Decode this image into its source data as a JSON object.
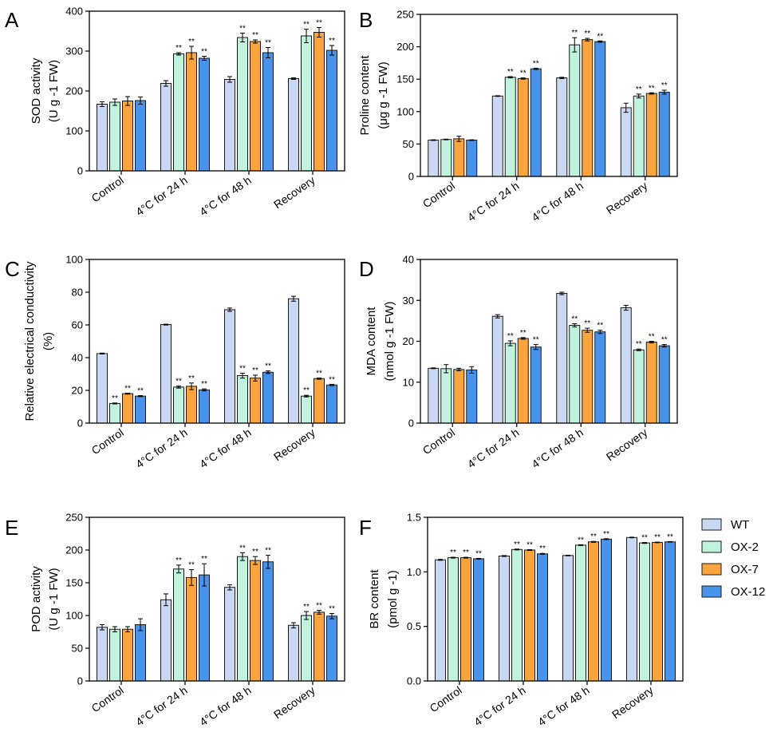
{
  "figure": {
    "colors": {
      "WT": "#c9d9f3",
      "OX-2": "#bff3dc",
      "OX-7": "#f9a43c",
      "OX-12": "#4892ea"
    },
    "legend": [
      "WT",
      "OX-2",
      "OX-7",
      "OX-12"
    ]
  },
  "chart_data": [
    {
      "type": "bar",
      "panel": "A",
      "title": "",
      "ylabel_lines": [
        "SOD activity",
        "(U g -1 FW)"
      ],
      "ylabel_sup": "-1",
      "ylim": [
        0,
        400
      ],
      "yticks": [
        0,
        100,
        200,
        300,
        400
      ],
      "categories": [
        "Control",
        "4°C for 24 h",
        "4°C for 48 h",
        "Recovery"
      ],
      "series": [
        {
          "name": "WT",
          "values": [
            167,
            219,
            229,
            231
          ],
          "errors": [
            6,
            7,
            7,
            2
          ]
        },
        {
          "name": "OX-2",
          "values": [
            172,
            293,
            334,
            338
          ],
          "errors": [
            8,
            3,
            11,
            17
          ]
        },
        {
          "name": "OX-7",
          "values": [
            175,
            296,
            324,
            347
          ],
          "errors": [
            11,
            16,
            4,
            12
          ]
        },
        {
          "name": "OX-12",
          "values": [
            176,
            282,
            296,
            302
          ],
          "errors": [
            9,
            5,
            13,
            12
          ]
        }
      ],
      "sig": [
        [
          "",
          "",
          "",
          ""
        ],
        [
          "",
          "**",
          "**",
          "**"
        ],
        [
          "",
          "**",
          "**",
          "**"
        ],
        [
          "",
          "**",
          "**",
          "**"
        ]
      ]
    },
    {
      "type": "bar",
      "panel": "B",
      "title": "",
      "ylabel_lines": [
        "Proline content",
        "(μg g -1 FW)"
      ],
      "ylim": [
        0,
        250
      ],
      "yticks": [
        0,
        50,
        100,
        150,
        200,
        250
      ],
      "categories": [
        "Control",
        "4°C for 24 h",
        "4°C for 48 h",
        "Recovery"
      ],
      "series": [
        {
          "name": "WT",
          "values": [
            56,
            124,
            152,
            106
          ],
          "errors": [
            0.5,
            0.5,
            1,
            7
          ]
        },
        {
          "name": "OX-2",
          "values": [
            57,
            153,
            203,
            124
          ],
          "errors": [
            0.5,
            1,
            11,
            3
          ]
        },
        {
          "name": "OX-7",
          "values": [
            58,
            151,
            211,
            128
          ],
          "errors": [
            4,
            1,
            2,
            1
          ]
        },
        {
          "name": "OX-12",
          "values": [
            56,
            166,
            208,
            130
          ],
          "errors": [
            0.5,
            1,
            1,
            3
          ]
        }
      ],
      "sig": [
        [
          "",
          "",
          "",
          ""
        ],
        [
          "",
          "**",
          "**",
          "**"
        ],
        [
          "",
          "**",
          "**",
          "**"
        ],
        [
          "",
          "**",
          "**",
          "**"
        ]
      ]
    },
    {
      "type": "bar",
      "panel": "C",
      "title": "",
      "ylabel_lines": [
        "Relative electrical conductivity",
        "(%)"
      ],
      "ylim": [
        0,
        100
      ],
      "yticks": [
        0,
        20,
        40,
        60,
        80,
        100
      ],
      "categories": [
        "Control",
        "4°C for 24 h",
        "4°C for 48 h",
        "Recovery"
      ],
      "series": [
        {
          "name": "WT",
          "values": [
            42.5,
            60.2,
            69.3,
            76
          ],
          "errors": [
            0.3,
            0.3,
            1,
            1.5
          ]
        },
        {
          "name": "OX-2",
          "values": [
            12,
            22,
            29,
            16.5
          ],
          "errors": [
            0.3,
            0.6,
            1.5,
            0.5
          ]
        },
        {
          "name": "OX-7",
          "values": [
            18,
            22.5,
            27.5,
            27.2
          ],
          "errors": [
            0.3,
            2,
            1.8,
            0.4
          ]
        },
        {
          "name": "OX-12",
          "values": [
            16.5,
            20.3,
            31.1,
            23.3
          ],
          "errors": [
            0.3,
            0.6,
            0.8,
            0.4
          ]
        }
      ],
      "sig": [
        [
          "",
          "**",
          "**",
          "**"
        ],
        [
          "",
          "**",
          "**",
          "**"
        ],
        [
          "",
          "**",
          "**",
          "**"
        ],
        [
          "",
          "**",
          "**",
          "**"
        ]
      ]
    },
    {
      "type": "bar",
      "panel": "D",
      "title": "",
      "ylabel_lines": [
        "MDA content",
        "(nmol g -1 FW)"
      ],
      "ylim": [
        0,
        40
      ],
      "yticks": [
        0,
        10,
        20,
        30,
        40
      ],
      "categories": [
        "Control",
        "4°C for 24 h",
        "4°C for 48 h",
        "Recovery"
      ],
      "series": [
        {
          "name": "WT",
          "values": [
            13.4,
            26.1,
            31.7,
            28.2
          ],
          "errors": [
            0.1,
            0.4,
            0.3,
            0.6
          ]
        },
        {
          "name": "OX-2",
          "values": [
            13.3,
            19.5,
            23.9,
            17.9
          ],
          "errors": [
            1,
            0.6,
            0.4,
            0.2
          ]
        },
        {
          "name": "OX-7",
          "values": [
            13.1,
            20.7,
            22.7,
            19.8
          ],
          "errors": [
            0.3,
            0.2,
            0.5,
            0.2
          ]
        },
        {
          "name": "OX-12",
          "values": [
            13,
            18.6,
            22.3,
            18.9
          ],
          "errors": [
            0.8,
            0.6,
            0.4,
            0.3
          ]
        }
      ],
      "sig": [
        [
          "",
          "",
          "",
          ""
        ],
        [
          "",
          "**",
          "**",
          "**"
        ],
        [
          "",
          "**",
          "**",
          "**"
        ],
        [
          "",
          "**",
          "**",
          "**"
        ]
      ]
    },
    {
      "type": "bar",
      "panel": "E",
      "title": "",
      "ylabel_lines": [
        "POD activity",
        "(U g -1 FW)"
      ],
      "ylim": [
        0,
        250
      ],
      "yticks": [
        0,
        50,
        100,
        150,
        200,
        250
      ],
      "categories": [
        "Control",
        "4°C for 24 h",
        "4°C for 48 h",
        "Recovery"
      ],
      "series": [
        {
          "name": "WT",
          "values": [
            82,
            124,
            143,
            85
          ],
          "errors": [
            4,
            9,
            4,
            4
          ]
        },
        {
          "name": "OX-2",
          "values": [
            79,
            171,
            190,
            100
          ],
          "errors": [
            4,
            6,
            6,
            6
          ]
        },
        {
          "name": "OX-7",
          "values": [
            79,
            158,
            184,
            105
          ],
          "errors": [
            4,
            12,
            6,
            3
          ]
        },
        {
          "name": "OX-12",
          "values": [
            86,
            162,
            182,
            99
          ],
          "errors": [
            9,
            17,
            10,
            4
          ]
        }
      ],
      "sig": [
        [
          "",
          "",
          "",
          ""
        ],
        [
          "",
          "**",
          "**",
          "**"
        ],
        [
          "",
          "**",
          "**",
          "**"
        ],
        [
          "",
          "**",
          "**",
          "**"
        ]
      ]
    },
    {
      "type": "bar",
      "panel": "F",
      "title": "",
      "ylabel_lines": [
        "BR content",
        "(pmol g -1)"
      ],
      "ylim": [
        0,
        1.5
      ],
      "yticks": [
        0.0,
        0.5,
        1.0,
        1.5
      ],
      "ytick_labels": [
        "0.0",
        "0.5",
        "1.0",
        "1.5"
      ],
      "categories": [
        "Control",
        "4°C for 24 h",
        "4°C for 48 h",
        "Recovery"
      ],
      "series": [
        {
          "name": "WT",
          "values": [
            1.11,
            1.145,
            1.15,
            1.315
          ],
          "errors": [
            0.004,
            0.004,
            0.003,
            0.003
          ]
        },
        {
          "name": "OX-2",
          "values": [
            1.13,
            1.205,
            1.245,
            1.265
          ],
          "errors": [
            0.004,
            0.004,
            0.004,
            0.004
          ]
        },
        {
          "name": "OX-7",
          "values": [
            1.13,
            1.2,
            1.275,
            1.27
          ],
          "errors": [
            0.004,
            0.004,
            0.004,
            0.003
          ]
        },
        {
          "name": "OX-12",
          "values": [
            1.12,
            1.165,
            1.3,
            1.275
          ],
          "errors": [
            0.003,
            0.004,
            0.004,
            0.003
          ]
        }
      ],
      "sig": [
        [
          "",
          "**",
          "**",
          "**"
        ],
        [
          "",
          "**",
          "**",
          "**"
        ],
        [
          "",
          "**",
          "**",
          "**"
        ],
        [
          "",
          "**",
          "**",
          "**"
        ]
      ]
    }
  ]
}
